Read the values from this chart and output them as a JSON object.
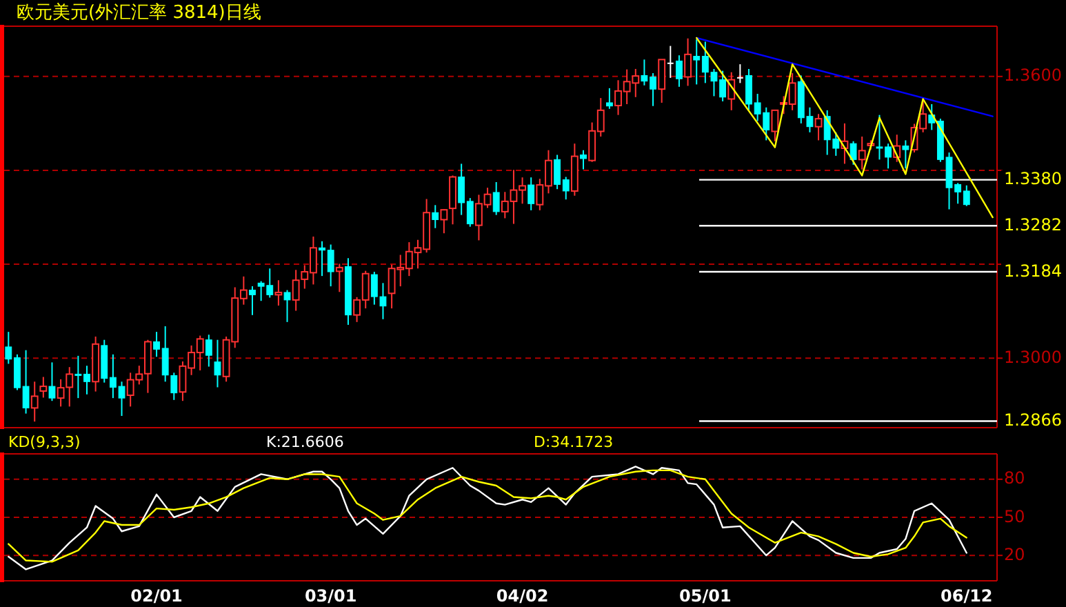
{
  "chart_data": [
    {
      "type": "candlestick",
      "title": "欧元美元(外汇汇率 3814)日线",
      "tick_labels": "y",
      "grid": "y",
      "ylim": [
        1.2852,
        1.3707
      ],
      "yticks": [
        {
          "value": 1.3,
          "label": "1.3000"
        },
        {
          "value": 1.32,
          "label": null
        },
        {
          "value": 1.34,
          "label": null
        },
        {
          "value": 1.36,
          "label": "1.3600"
        }
      ],
      "ohlc": [
        [
          1.3024,
          1.3056,
          1.2988,
          1.2998
        ],
        [
          1.3001,
          1.3008,
          1.2932,
          1.2937
        ],
        [
          1.294,
          1.3017,
          1.2882,
          1.2894
        ],
        [
          1.2894,
          1.295,
          1.2865,
          1.2919
        ],
        [
          1.293,
          1.296,
          1.2916,
          1.294
        ],
        [
          1.294,
          1.2991,
          1.2909,
          1.2915
        ],
        [
          1.2915,
          1.2955,
          1.2897,
          1.2937
        ],
        [
          1.2938,
          1.2981,
          1.2897,
          1.2966
        ],
        [
          1.2966,
          1.3005,
          1.2915,
          1.2964
        ],
        [
          1.2966,
          1.2984,
          1.2923,
          1.295
        ],
        [
          1.295,
          1.3046,
          1.2929,
          1.303
        ],
        [
          1.3027,
          1.3039,
          1.2948,
          1.2957
        ],
        [
          1.2959,
          1.3008,
          1.2915,
          1.2938
        ],
        [
          1.294,
          1.295,
          1.2877,
          1.2915
        ],
        [
          1.2921,
          1.2969,
          1.2897,
          1.2954
        ],
        [
          1.2954,
          1.2984,
          1.2944,
          1.2966
        ],
        [
          1.2967,
          1.3039,
          1.2926,
          1.3035
        ],
        [
          1.3035,
          1.3056,
          1.3003,
          1.3019
        ],
        [
          1.3021,
          1.3068,
          1.295,
          1.2964
        ],
        [
          1.2963,
          1.2969,
          1.2911,
          1.2926
        ],
        [
          1.2928,
          1.2993,
          1.2909,
          1.2983
        ],
        [
          1.2979,
          1.3027,
          1.2964,
          1.3012
        ],
        [
          1.3012,
          1.3048,
          1.2974,
          1.3041
        ],
        [
          1.3039,
          1.305,
          1.2982,
          1.3006
        ],
        [
          1.2992,
          1.3039,
          1.2938,
          1.2964
        ],
        [
          1.2961,
          1.3046,
          1.295,
          1.3039
        ],
        [
          1.3035,
          1.3151,
          1.3022,
          1.3128
        ],
        [
          1.3127,
          1.3174,
          1.3114,
          1.3145
        ],
        [
          1.3145,
          1.3153,
          1.3092,
          1.3135
        ],
        [
          1.316,
          1.3164,
          1.3122,
          1.3153
        ],
        [
          1.3155,
          1.3191,
          1.3129,
          1.3135
        ],
        [
          1.3135,
          1.3166,
          1.3112,
          1.314
        ],
        [
          1.314,
          1.3145,
          1.3077,
          1.3124
        ],
        [
          1.3124,
          1.3188,
          1.3101,
          1.3166
        ],
        [
          1.3168,
          1.3198,
          1.3148,
          1.3184
        ],
        [
          1.3182,
          1.3259,
          1.3157,
          1.3235
        ],
        [
          1.3235,
          1.3249,
          1.3175,
          1.323
        ],
        [
          1.323,
          1.3242,
          1.3153,
          1.3184
        ],
        [
          1.3185,
          1.3201,
          1.3141,
          1.3193
        ],
        [
          1.3195,
          1.3213,
          1.3071,
          1.3092
        ],
        [
          1.3092,
          1.313,
          1.3077,
          1.3124
        ],
        [
          1.3124,
          1.3186,
          1.3106,
          1.318
        ],
        [
          1.3178,
          1.3184,
          1.3114,
          1.3131
        ],
        [
          1.3131,
          1.316,
          1.3083,
          1.3111
        ],
        [
          1.3138,
          1.3199,
          1.3106,
          1.3191
        ],
        [
          1.3189,
          1.322,
          1.3153,
          1.3193
        ],
        [
          1.3191,
          1.3247,
          1.3175,
          1.3227
        ],
        [
          1.3225,
          1.3252,
          1.3191,
          1.3235
        ],
        [
          1.3232,
          1.3339,
          1.3225,
          1.331
        ],
        [
          1.331,
          1.3326,
          1.3277,
          1.3295
        ],
        [
          1.3295,
          1.3317,
          1.3266,
          1.3316
        ],
        [
          1.3319,
          1.3389,
          1.3285,
          1.3386
        ],
        [
          1.3386,
          1.3414,
          1.3305,
          1.3331
        ],
        [
          1.3334,
          1.3341,
          1.328,
          1.3286
        ],
        [
          1.3283,
          1.3348,
          1.3251,
          1.3329
        ],
        [
          1.3327,
          1.3363,
          1.332,
          1.3349
        ],
        [
          1.3353,
          1.3375,
          1.3305,
          1.3312
        ],
        [
          1.3312,
          1.3354,
          1.3298,
          1.3334
        ],
        [
          1.3334,
          1.3401,
          1.3286,
          1.3358
        ],
        [
          1.3358,
          1.3385,
          1.3329,
          1.3367
        ],
        [
          1.3369,
          1.3385,
          1.3315,
          1.3329
        ],
        [
          1.3327,
          1.3382,
          1.3315,
          1.3369
        ],
        [
          1.3367,
          1.3443,
          1.3351,
          1.3421
        ],
        [
          1.3423,
          1.3433,
          1.336,
          1.337
        ],
        [
          1.338,
          1.3386,
          1.3338,
          1.3356
        ],
        [
          1.3356,
          1.3457,
          1.3346,
          1.343
        ],
        [
          1.3433,
          1.3443,
          1.3402,
          1.3425
        ],
        [
          1.3421,
          1.3502,
          1.3418,
          1.3484
        ],
        [
          1.3483,
          1.3554,
          1.3472,
          1.3528
        ],
        [
          1.3544,
          1.3575,
          1.3531,
          1.3537
        ],
        [
          1.3538,
          1.3592,
          1.3518,
          1.3569
        ],
        [
          1.3568,
          1.3615,
          1.3541,
          1.3589
        ],
        [
          1.3586,
          1.3616,
          1.3556,
          1.3601
        ],
        [
          1.3602,
          1.3636,
          1.3581,
          1.359
        ],
        [
          1.3599,
          1.3607,
          1.3537,
          1.3573
        ],
        [
          1.3573,
          1.3636,
          1.3544,
          1.3636
        ],
        [
          1.3628,
          1.3665,
          1.3597,
          1.3628
        ],
        [
          1.3633,
          1.3645,
          1.3578,
          1.3595
        ],
        [
          1.3599,
          1.3681,
          1.358,
          1.3647
        ],
        [
          1.3643,
          1.3679,
          1.3583,
          1.3635
        ],
        [
          1.3643,
          1.3674,
          1.3586,
          1.3609
        ],
        [
          1.3609,
          1.3616,
          1.3558,
          1.359
        ],
        [
          1.3593,
          1.3612,
          1.3547,
          1.3556
        ],
        [
          1.3552,
          1.3609,
          1.3528,
          1.3593
        ],
        [
          1.3597,
          1.3626,
          1.3586,
          1.3597
        ],
        [
          1.3602,
          1.3616,
          1.3528,
          1.3541
        ],
        [
          1.3544,
          1.3563,
          1.3505,
          1.352
        ],
        [
          1.3523,
          1.3534,
          1.3464,
          1.3486
        ],
        [
          1.3483,
          1.3529,
          1.3462,
          1.3528
        ],
        [
          1.3541,
          1.3558,
          1.352,
          1.3544
        ],
        [
          1.3541,
          1.3607,
          1.3528,
          1.3586
        ],
        [
          1.3589,
          1.3602,
          1.35,
          1.3512
        ],
        [
          1.3515,
          1.3534,
          1.3481,
          1.3493
        ],
        [
          1.3493,
          1.352,
          1.3464,
          1.351
        ],
        [
          1.3515,
          1.3528,
          1.3433,
          1.3465
        ],
        [
          1.3467,
          1.3481,
          1.3431,
          1.3447
        ],
        [
          1.3447,
          1.35,
          1.3414,
          1.3462
        ],
        [
          1.3457,
          1.3462,
          1.3412,
          1.3423
        ],
        [
          1.3423,
          1.3472,
          1.3402,
          1.3442
        ],
        [
          1.3453,
          1.3464,
          1.3444,
          1.3457
        ],
        [
          1.345,
          1.3518,
          1.3423,
          1.3448
        ],
        [
          1.345,
          1.3457,
          1.3404,
          1.3428
        ],
        [
          1.3428,
          1.3476,
          1.3418,
          1.3452
        ],
        [
          1.3452,
          1.3464,
          1.3404,
          1.3444
        ],
        [
          1.3444,
          1.3499,
          1.3438,
          1.3491
        ],
        [
          1.3489,
          1.3554,
          1.3481,
          1.352
        ],
        [
          1.3518,
          1.3541,
          1.3486,
          1.3501
        ],
        [
          1.3505,
          1.351,
          1.3418,
          1.3423
        ],
        [
          1.3428,
          1.3438,
          1.3317,
          1.3363
        ],
        [
          1.337,
          1.3373,
          1.3329,
          1.3354
        ],
        [
          1.3356,
          1.3368,
          1.3324,
          1.3327
        ],
        null,
        null,
        null
      ],
      "series": [
        {
          "type": "line",
          "color": "#0000ff",
          "values": [
            null,
            null,
            null,
            null,
            null,
            null,
            null,
            null,
            null,
            null,
            null,
            null,
            null,
            null,
            null,
            null,
            null,
            null,
            null,
            null,
            null,
            null,
            null,
            null,
            null,
            null,
            null,
            null,
            null,
            null,
            null,
            null,
            null,
            null,
            null,
            null,
            null,
            null,
            null,
            null,
            null,
            null,
            null,
            null,
            null,
            null,
            null,
            null,
            null,
            null,
            null,
            null,
            null,
            null,
            null,
            null,
            null,
            null,
            null,
            null,
            null,
            null,
            null,
            null,
            null,
            null,
            null,
            null,
            null,
            null,
            null,
            null,
            null,
            null,
            null,
            null,
            null,
            null,
            null,
            1.3682,
            null,
            null,
            null,
            null,
            null,
            null,
            null,
            null,
            null,
            null,
            null,
            null,
            null,
            null,
            null,
            null,
            null,
            null,
            null,
            null,
            null,
            null,
            null,
            null,
            null,
            null,
            null,
            null,
            null,
            null,
            null,
            null,
            null,
            1.3515
          ]
        },
        {
          "type": "line",
          "color": "#ffff00",
          "values": [
            null,
            null,
            null,
            null,
            null,
            null,
            null,
            null,
            null,
            null,
            null,
            null,
            null,
            null,
            null,
            null,
            null,
            null,
            null,
            null,
            null,
            null,
            null,
            null,
            null,
            null,
            null,
            null,
            null,
            null,
            null,
            null,
            null,
            null,
            null,
            null,
            null,
            null,
            null,
            null,
            null,
            null,
            null,
            null,
            null,
            null,
            null,
            null,
            null,
            null,
            null,
            null,
            null,
            null,
            null,
            null,
            null,
            null,
            null,
            null,
            null,
            null,
            null,
            null,
            null,
            null,
            null,
            null,
            null,
            null,
            null,
            null,
            null,
            null,
            null,
            null,
            null,
            null,
            null,
            1.3682,
            null,
            null,
            null,
            null,
            null,
            null,
            null,
            null,
            1.3449,
            null,
            1.3626,
            null,
            null,
            null,
            null,
            null,
            null,
            null,
            1.3389,
            null,
            1.3512,
            null,
            null,
            1.3392,
            null,
            1.3552,
            null,
            null,
            null,
            null,
            null,
            null,
            null,
            1.33
          ]
        }
      ],
      "ref_lines": [
        {
          "axis": "y",
          "value": 1.338,
          "label": "1.3380",
          "color": "#ffffff"
        },
        {
          "axis": "y",
          "value": 1.3282,
          "label": "1.3282",
          "color": "#ffffff"
        },
        {
          "axis": "y",
          "value": 1.3184,
          "label": "1.3184",
          "color": "#ffffff"
        },
        {
          "axis": "y",
          "value": 1.2866,
          "label": "1.2866",
          "color": "#ffffff"
        }
      ]
    },
    {
      "type": "line",
      "grid": "y",
      "ylim": [
        0,
        100
      ],
      "yticks": [
        20,
        50,
        80
      ],
      "annotations": [
        "KD(9,3,3)",
        "K:21.6606",
        "D:34.1723"
      ],
      "categories": [
        null,
        null,
        null,
        null,
        null,
        null,
        null,
        null,
        null,
        null,
        null,
        null,
        null,
        null,
        null,
        null,
        null,
        "02/01",
        null,
        null,
        null,
        null,
        null,
        null,
        null,
        null,
        null,
        null,
        null,
        null,
        null,
        null,
        null,
        null,
        null,
        null,
        null,
        "03/01",
        null,
        null,
        null,
        null,
        null,
        null,
        null,
        null,
        null,
        null,
        null,
        null,
        null,
        null,
        null,
        null,
        null,
        null,
        null,
        null,
        null,
        "04/02",
        null,
        null,
        null,
        null,
        null,
        null,
        null,
        null,
        null,
        null,
        null,
        null,
        null,
        null,
        null,
        null,
        null,
        null,
        null,
        null,
        "05/01",
        null,
        null,
        null,
        null,
        null,
        null,
        null,
        null,
        null,
        null,
        null,
        null,
        null,
        null,
        null,
        null,
        null,
        null,
        null,
        null,
        null,
        null,
        null,
        null,
        null,
        null,
        null,
        null,
        null,
        "06/12",
        null,
        null,
        null
      ],
      "series": [
        {
          "color": "#ffffff",
          "values": [
            19,
            null,
            9,
            null,
            null,
            16,
            null,
            30,
            null,
            42,
            59,
            null,
            49,
            39,
            null,
            43,
            null,
            68,
            null,
            50,
            null,
            55,
            66,
            null,
            55,
            null,
            74,
            null,
            null,
            84,
            null,
            null,
            80,
            null,
            null,
            86,
            86,
            80,
            73,
            55,
            44,
            49,
            null,
            37,
            null,
            51,
            67,
            null,
            80,
            null,
            null,
            89,
            null,
            75,
            71,
            null,
            61,
            60,
            null,
            64,
            62,
            null,
            73,
            null,
            60,
            69,
            null,
            82,
            null,
            null,
            84,
            null,
            90,
            null,
            84,
            89,
            null,
            87,
            77,
            76,
            null,
            60,
            42,
            null,
            43,
            null,
            null,
            20,
            26,
            null,
            47,
            null,
            35,
            32,
            null,
            22,
            null,
            18,
            null,
            18,
            22,
            null,
            25,
            33,
            55,
            null,
            61,
            null,
            48,
            null,
            22,
            null,
            null,
            null
          ]
        },
        {
          "color": "#ffff00",
          "values": [
            29,
            null,
            16,
            null,
            null,
            15,
            null,
            null,
            24,
            null,
            38,
            47,
            null,
            44,
            null,
            44,
            null,
            57,
            null,
            56,
            null,
            58,
            null,
            61,
            null,
            66,
            null,
            73,
            null,
            null,
            81,
            null,
            80,
            null,
            84,
            null,
            84,
            null,
            82,
            null,
            61,
            null,
            53,
            48,
            null,
            51,
            null,
            64,
            null,
            73,
            null,
            null,
            82,
            null,
            78,
            null,
            75,
            null,
            66,
            null,
            65,
            null,
            67,
            66,
            64,
            null,
            74,
            null,
            null,
            82,
            null,
            null,
            86,
            null,
            87,
            null,
            87,
            null,
            82,
            null,
            80,
            null,
            62,
            53,
            null,
            42,
            null,
            null,
            30,
            null,
            null,
            38,
            null,
            35,
            null,
            29,
            null,
            22,
            null,
            19,
            null,
            21,
            null,
            26,
            35,
            46,
            null,
            49,
            43,
            null,
            34,
            null,
            null,
            null
          ]
        }
      ]
    }
  ]
}
